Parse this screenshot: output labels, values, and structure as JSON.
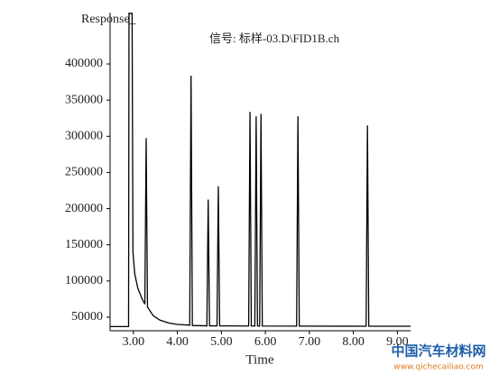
{
  "chart_data": {
    "type": "line",
    "y_label": "Response_",
    "annotation": "信号: 标样-03.D\\FID1B.ch",
    "x_label": "Time",
    "watermark": [
      "中国汽车材料网",
      "www.qichecailiao.com"
    ],
    "x": [
      2.47,
      2.89,
      2.9,
      2.97,
      2.99,
      3.03,
      3.1,
      3.2,
      3.26,
      3.29,
      3.32,
      3.45,
      3.6,
      3.8,
      4.0,
      4.28,
      4.31,
      4.34,
      4.67,
      4.7,
      4.73,
      4.9,
      4.93,
      4.96,
      5.62,
      5.65,
      5.68,
      5.76,
      5.79,
      5.82,
      5.87,
      5.9,
      5.93,
      6.71,
      6.74,
      6.77,
      8.29,
      8.32,
      8.35,
      9.3
    ],
    "series": [
      {
        "color": "#000000",
        "values": [
          37000,
          37000,
          470000,
          470000,
          140000,
          110000,
          90000,
          75000,
          68000,
          297500,
          64000,
          52000,
          46000,
          42000,
          40000,
          39000,
          383750,
          38500,
          38000,
          212500,
          38000,
          38000,
          231000,
          38000,
          37800,
          333750,
          37800,
          37800,
          327500,
          37800,
          37800,
          331000,
          37800,
          37600,
          327500,
          37600,
          37500,
          315000,
          37500,
          37500
        ]
      }
    ],
    "xlim": [
      2.47,
      9.3
    ],
    "ylim": [
      31250,
      471000
    ],
    "xticks": [
      {
        "value": 3,
        "label": "3.00"
      },
      {
        "value": 4,
        "label": "4.00"
      },
      {
        "value": 5,
        "label": "5.00"
      },
      {
        "value": 6,
        "label": "6.00"
      },
      {
        "value": 7,
        "label": "7.00"
      },
      {
        "value": 8,
        "label": "8.00"
      },
      {
        "value": 9,
        "label": "9.00"
      }
    ],
    "yticks": [
      50000,
      100000,
      150000,
      200000,
      250000,
      300000,
      350000,
      400000
    ],
    "grid": false
  }
}
